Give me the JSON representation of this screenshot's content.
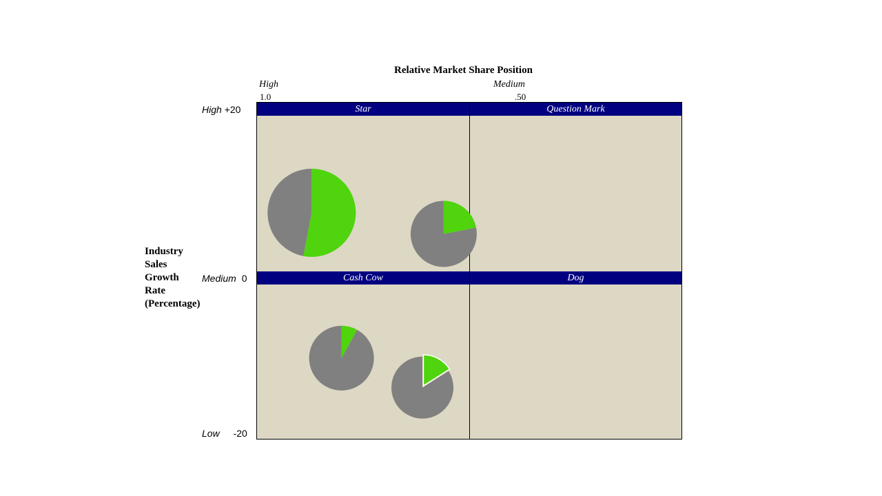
{
  "title": "Relative Market Share Position",
  "x_axis": {
    "high_label": "High",
    "high_value": "1.0",
    "medium_label": "Medium",
    "medium_value": ".50"
  },
  "y_axis": {
    "title_lines": [
      "Industry",
      "Sales",
      "Growth",
      "Rate",
      "(Percentage)"
    ],
    "high_label": "High",
    "high_value": "+20",
    "medium_label": "Medium",
    "medium_value": "0",
    "low_label": "Low",
    "low_value": "-20"
  },
  "quadrants": {
    "star": "Star",
    "question_mark": "Question Mark",
    "cash_cow": "Cash Cow",
    "dog": "Dog"
  },
  "colors": {
    "header": "#000080",
    "quadrant_bg": "#dcd8c4",
    "pie_main": "#808080",
    "pie_share": "#4fd40d"
  },
  "chart_data": {
    "type": "bubble-pie",
    "title": "Relative Market Share Position",
    "xlabel": "",
    "ylabel": "Industry Sales Growth Rate (Percentage)",
    "xlim": [
      1.0,
      0.0
    ],
    "ylim": [
      -20,
      20
    ],
    "series": [
      {
        "quadrant": "Star",
        "relative_market_share": 0.87,
        "growth_rate": 8.5,
        "share_fraction": 0.53,
        "exploded": false
      },
      {
        "quadrant": "Star",
        "relative_market_share": 0.56,
        "growth_rate": 6.0,
        "share_fraction": 0.22,
        "exploded": false
      },
      {
        "quadrant": "Cash Cow",
        "relative_market_share": 0.8,
        "growth_rate": -9.5,
        "share_fraction": 0.08,
        "exploded": false
      },
      {
        "quadrant": "Cash Cow",
        "relative_market_share": 0.61,
        "growth_rate": -13.3,
        "share_fraction": 0.16,
        "exploded": true
      }
    ]
  }
}
